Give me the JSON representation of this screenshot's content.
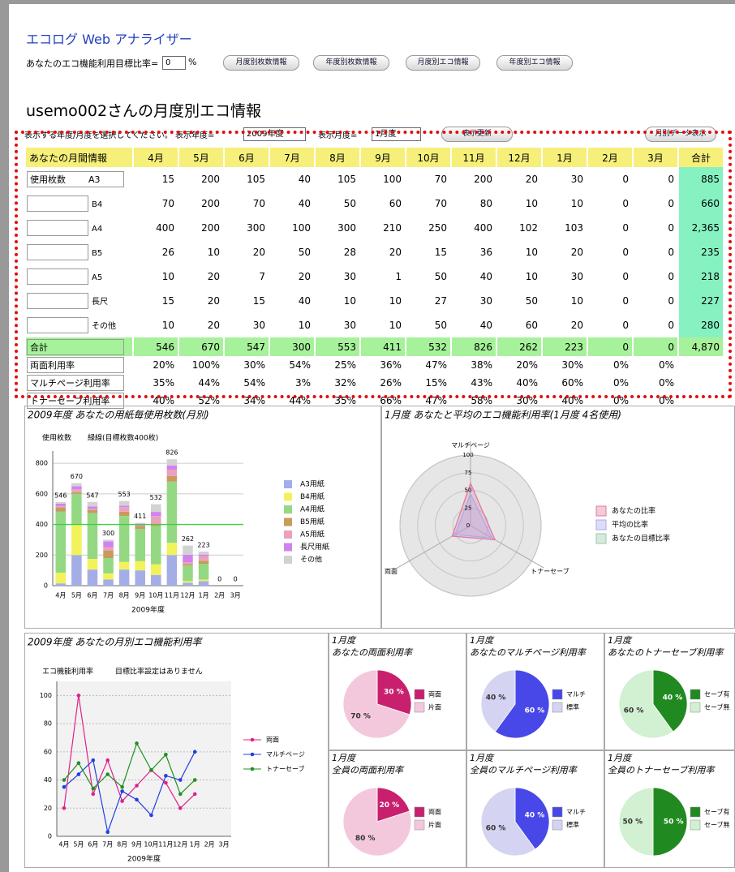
{
  "header": {
    "title": "エコログ Web アナライザー",
    "target_label": "あなたのエコ機能利用目標比率=",
    "target_value": "0",
    "target_unit": "%",
    "buttons": [
      "月度別枚数情報",
      "年度別枚数情報",
      "月度別エコ情報",
      "年度別エコ情報"
    ]
  },
  "page_title": "usemo002さんの月度別エコ情報",
  "controls": {
    "prompt": "表示する年度/月度を選択してください。 表示年度=",
    "year": "2009年度",
    "month_label": "表示月度=",
    "month": "1月度",
    "update": "表示更新",
    "monthly": "月別データ表示"
  },
  "table": {
    "header": [
      "あなたの月間情報",
      "4月",
      "5月",
      "6月",
      "7月",
      "8月",
      "9月",
      "10月",
      "11月",
      "12月",
      "1月",
      "2月",
      "3月",
      "合計"
    ],
    "usage_rows": [
      {
        "label": "使用枚数",
        "size": "A3",
        "cells": [
          "15",
          "200",
          "105",
          "40",
          "105",
          "100",
          "70",
          "200",
          "20",
          "30",
          "0",
          "0",
          "885"
        ]
      },
      {
        "size": "B4",
        "cells": [
          "70",
          "200",
          "70",
          "40",
          "50",
          "60",
          "70",
          "80",
          "10",
          "10",
          "0",
          "0",
          "660"
        ]
      },
      {
        "size": "A4",
        "cells": [
          "400",
          "200",
          "300",
          "100",
          "300",
          "210",
          "250",
          "400",
          "102",
          "103",
          "0",
          "0",
          "2,365"
        ]
      },
      {
        "size": "B5",
        "cells": [
          "26",
          "10",
          "20",
          "50",
          "28",
          "20",
          "15",
          "36",
          "10",
          "20",
          "0",
          "0",
          "235"
        ]
      },
      {
        "size": "A5",
        "cells": [
          "10",
          "20",
          "7",
          "20",
          "30",
          "1",
          "50",
          "40",
          "10",
          "30",
          "0",
          "0",
          "218"
        ]
      },
      {
        "size": "長尺",
        "cells": [
          "15",
          "20",
          "15",
          "40",
          "10",
          "10",
          "27",
          "30",
          "50",
          "10",
          "0",
          "0",
          "227"
        ]
      },
      {
        "size": "その他",
        "cells": [
          "10",
          "20",
          "30",
          "10",
          "30",
          "10",
          "50",
          "40",
          "60",
          "20",
          "0",
          "0",
          "280"
        ]
      }
    ],
    "total_row": {
      "label": "合計",
      "cells": [
        "546",
        "670",
        "547",
        "300",
        "553",
        "411",
        "532",
        "826",
        "262",
        "223",
        "0",
        "0",
        "4,870"
      ]
    },
    "rate_rows": [
      {
        "label": "両面利用率",
        "cells": [
          "20%",
          "100%",
          "30%",
          "54%",
          "25%",
          "36%",
          "47%",
          "38%",
          "20%",
          "30%",
          "0%",
          "0%"
        ]
      },
      {
        "label": "マルチページ利用率",
        "cells": [
          "35%",
          "44%",
          "54%",
          "3%",
          "32%",
          "26%",
          "15%",
          "43%",
          "40%",
          "60%",
          "0%",
          "0%"
        ]
      },
      {
        "label": "トナーセーブ利用率",
        "cells": [
          "40%",
          "52%",
          "34%",
          "44%",
          "35%",
          "66%",
          "47%",
          "58%",
          "30%",
          "40%",
          "0%",
          "0%"
        ]
      }
    ]
  },
  "chart_data": [
    {
      "type": "bar",
      "stacked": true,
      "title": "2009年度 あなたの用紙毎使用枚数(月別)",
      "y_label": "使用枚数",
      "annotation": "緑線(目標枚数400枚)",
      "target": 400,
      "target_color": "#40d040",
      "categories": [
        "4月",
        "5月",
        "6月",
        "7月",
        "8月",
        "9月",
        "10月",
        "11月",
        "12月",
        "1月",
        "2月",
        "3月"
      ],
      "x_label": "2009年度",
      "ylim": [
        0,
        880
      ],
      "yticks": [
        0,
        200,
        400,
        600,
        800
      ],
      "grid": true,
      "series": [
        {
          "name": "A3用紙",
          "color": "#a4aee6",
          "values": [
            15,
            200,
            105,
            40,
            105,
            100,
            70,
            200,
            20,
            30,
            0,
            0
          ]
        },
        {
          "name": "B4用紙",
          "color": "#f2f25a",
          "values": [
            70,
            200,
            70,
            40,
            50,
            60,
            70,
            80,
            10,
            10,
            0,
            0
          ]
        },
        {
          "name": "A4用紙",
          "color": "#94d884",
          "values": [
            400,
            200,
            300,
            100,
            300,
            210,
            250,
            400,
            102,
            103,
            0,
            0
          ]
        },
        {
          "name": "B5用紙",
          "color": "#c89a5c",
          "values": [
            26,
            10,
            20,
            50,
            28,
            20,
            15,
            36,
            10,
            20,
            0,
            0
          ]
        },
        {
          "name": "A5用紙",
          "color": "#eaa2bc",
          "values": [
            10,
            20,
            7,
            20,
            30,
            1,
            50,
            40,
            10,
            30,
            0,
            0
          ]
        },
        {
          "name": "長尺用紙",
          "color": "#d282f0",
          "values": [
            15,
            20,
            15,
            40,
            10,
            10,
            27,
            30,
            50,
            10,
            0,
            0
          ]
        },
        {
          "name": "その他",
          "color": "#d2d2d2",
          "values": [
            10,
            20,
            30,
            10,
            30,
            10,
            50,
            40,
            60,
            20,
            0,
            0
          ]
        }
      ],
      "totals": [
        546,
        670,
        547,
        300,
        553,
        411,
        532,
        826,
        262,
        223,
        0,
        0
      ]
    },
    {
      "type": "radar",
      "title": "1月度 あなたと平均のエコ機能利用率(1月度 4名使用)",
      "axes": [
        "マルチページ",
        "トナーセーブ",
        "両面"
      ],
      "rlim": [
        0,
        100
      ],
      "rticks": [
        0,
        25,
        50,
        75,
        100
      ],
      "series": [
        {
          "name": "あなたの比率",
          "color": "#e27aa0",
          "values": [
            60,
            40,
            30
          ]
        },
        {
          "name": "平均の比率",
          "color": "#aaaaee",
          "values": [
            45,
            35,
            25
          ]
        },
        {
          "name": "あなたの目標比率",
          "color": "#9cc8a8",
          "values": [
            0,
            0,
            0
          ]
        }
      ]
    },
    {
      "type": "line",
      "title": "2009年度 あなたの月別エコ機能利用率",
      "y_label": "エコ機能利用率",
      "annotation": "目標比率設定はありません",
      "categories": [
        "4月",
        "5月",
        "6月",
        "7月",
        "8月",
        "9月",
        "10月",
        "11月",
        "12月",
        "1月",
        "2月",
        "3月"
      ],
      "x_label": "2009年度",
      "ylim": [
        0,
        110
      ],
      "yticks": [
        0,
        20,
        40,
        60,
        80,
        100
      ],
      "grid": true,
      "series": [
        {
          "name": "両面",
          "color": "#e0208a",
          "values": [
            20,
            100,
            30,
            54,
            25,
            36,
            47,
            38,
            20,
            30,
            null,
            null
          ]
        },
        {
          "name": "マルチページ",
          "color": "#2040e0",
          "values": [
            35,
            44,
            54,
            3,
            32,
            26,
            15,
            43,
            40,
            60,
            null,
            null
          ]
        },
        {
          "name": "トナーセーブ",
          "color": "#209020",
          "values": [
            40,
            52,
            34,
            44,
            35,
            66,
            47,
            58,
            30,
            40,
            null,
            null
          ]
        }
      ]
    },
    {
      "type": "pie",
      "title": "1月度",
      "subtitle": "あなたの両面利用率",
      "categories": [
        "両面",
        "片面"
      ],
      "values": [
        30,
        70
      ],
      "value_labels": [
        "30 %",
        "70 %"
      ],
      "colors": [
        "#c8206e",
        "#f4c8dc"
      ]
    },
    {
      "type": "pie",
      "title": "1月度",
      "subtitle": "あなたのマルチページ利用率",
      "categories": [
        "マルチ",
        "標準"
      ],
      "values": [
        60,
        40
      ],
      "value_labels": [
        "60 %",
        "40 %"
      ],
      "colors": [
        "#4848e8",
        "#d4d4f2"
      ]
    },
    {
      "type": "pie",
      "title": "1月度",
      "subtitle": "あなたのトナーセーブ利用率",
      "categories": [
        "セーブ有",
        "セーブ無"
      ],
      "values": [
        40,
        60
      ],
      "value_labels": [
        "40 %",
        "60 %"
      ],
      "colors": [
        "#208a20",
        "#d2f0d2"
      ]
    },
    {
      "type": "pie",
      "title": "1月度",
      "subtitle": "全員の両面利用率",
      "categories": [
        "両面",
        "片面"
      ],
      "values": [
        20,
        80
      ],
      "value_labels": [
        "20 %",
        "80 %"
      ],
      "colors": [
        "#c8206e",
        "#f4c8dc"
      ]
    },
    {
      "type": "pie",
      "title": "1月度",
      "subtitle": "全員のマルチページ利用率",
      "categories": [
        "マルチ",
        "標準"
      ],
      "values": [
        40,
        60
      ],
      "value_labels": [
        "40 %",
        "60 %"
      ],
      "colors": [
        "#4848e8",
        "#d4d4f2"
      ]
    },
    {
      "type": "pie",
      "title": "1月度",
      "subtitle": "全員のトナーセーブ利用率",
      "categories": [
        "セーブ有",
        "セーブ無"
      ],
      "values": [
        50,
        50
      ],
      "value_labels": [
        "50 %",
        "50 %"
      ],
      "colors": [
        "#208a20",
        "#d2f0d2"
      ]
    }
  ]
}
